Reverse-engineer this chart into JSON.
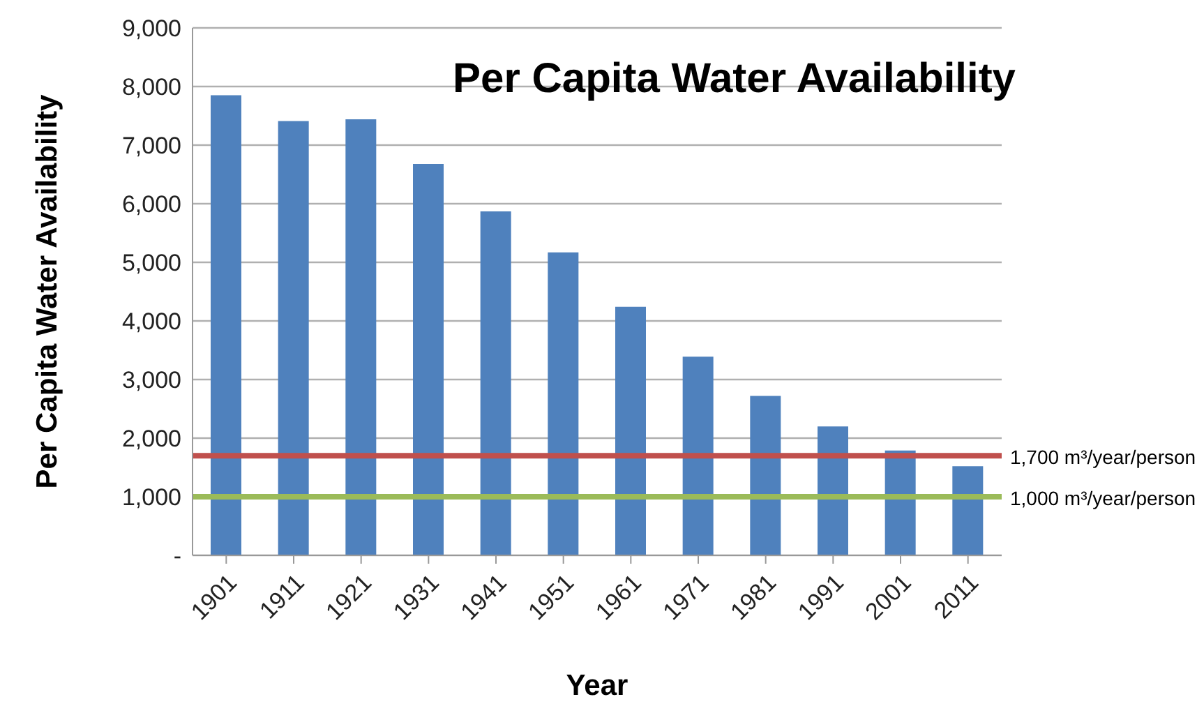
{
  "chart_data": {
    "type": "bar",
    "title": "Per Capita Water Availability",
    "xlabel": "Year",
    "ylabel": "Per Capita Water Availability",
    "categories": [
      "1901",
      "1911",
      "1921",
      "1931",
      "1941",
      "1951",
      "1961",
      "1971",
      "1981",
      "1991",
      "2001",
      "2011"
    ],
    "values": [
      7850,
      7410,
      7440,
      6680,
      5870,
      5170,
      4240,
      3390,
      2720,
      2200,
      1790,
      1520
    ],
    "color": "#4f81bd",
    "ylim": [
      0,
      9000
    ],
    "yticks": [
      {
        "value": 0,
        "label": "-"
      },
      {
        "value": 1000,
        "label": "1,000"
      },
      {
        "value": 2000,
        "label": "2,000"
      },
      {
        "value": 3000,
        "label": "3,000"
      },
      {
        "value": 4000,
        "label": "4,000"
      },
      {
        "value": 5000,
        "label": "5,000"
      },
      {
        "value": 6000,
        "label": "6,000"
      },
      {
        "value": 7000,
        "label": "7,000"
      },
      {
        "value": 8000,
        "label": "8,000"
      },
      {
        "value": 9000,
        "label": "9,000"
      }
    ],
    "grid": "y",
    "legend": false,
    "ref_lines": [
      {
        "axis": "y",
        "value": 1700,
        "label": "1,700 m³/year/person",
        "color": "#c0504d"
      },
      {
        "axis": "y",
        "value": 1000,
        "label": "1,000 m³/year/person",
        "color": "#9bbb59"
      }
    ]
  }
}
